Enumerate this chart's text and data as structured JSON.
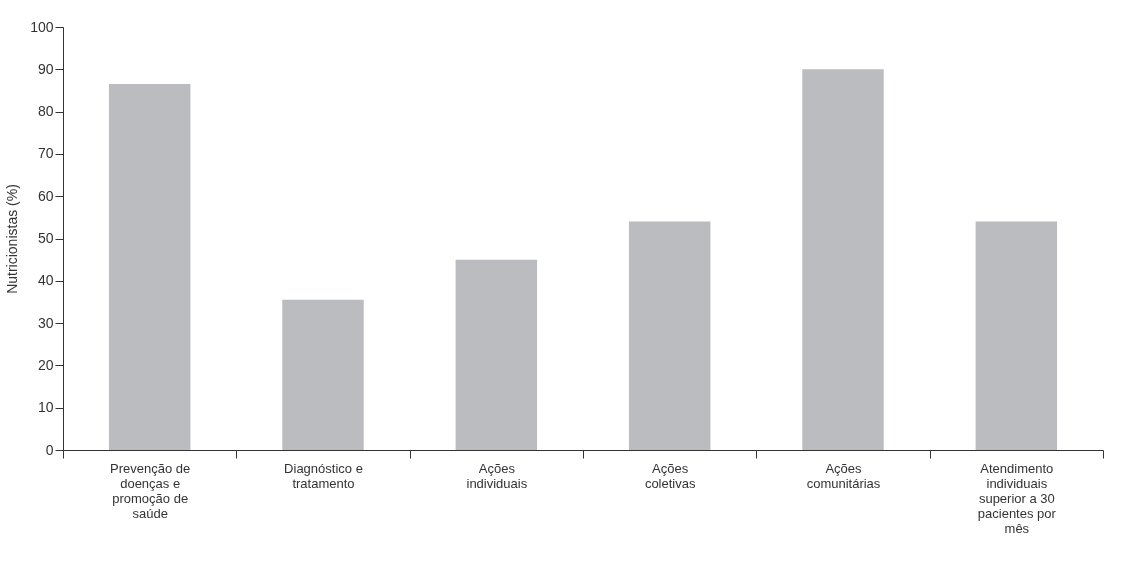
{
  "chart_data": {
    "type": "bar",
    "ylabel": "Nutricionistas  (%)",
    "categories": [
      "Prevenção de doenças e promoção de saúde",
      "Diagnóstico e tratamento",
      "Ações individuais",
      "Ações coletivas",
      "Ações comunitárias",
      "Atendimento individuais superior a 30 pacientes por mês"
    ],
    "values": [
      86.5,
      35.5,
      45,
      54,
      90,
      54
    ],
    "color": "#bbbcc0",
    "ylim": [
      0,
      100
    ],
    "yticks": [
      0,
      10,
      20,
      30,
      40,
      50,
      60,
      70,
      80,
      90,
      100
    ],
    "grid": false
  }
}
